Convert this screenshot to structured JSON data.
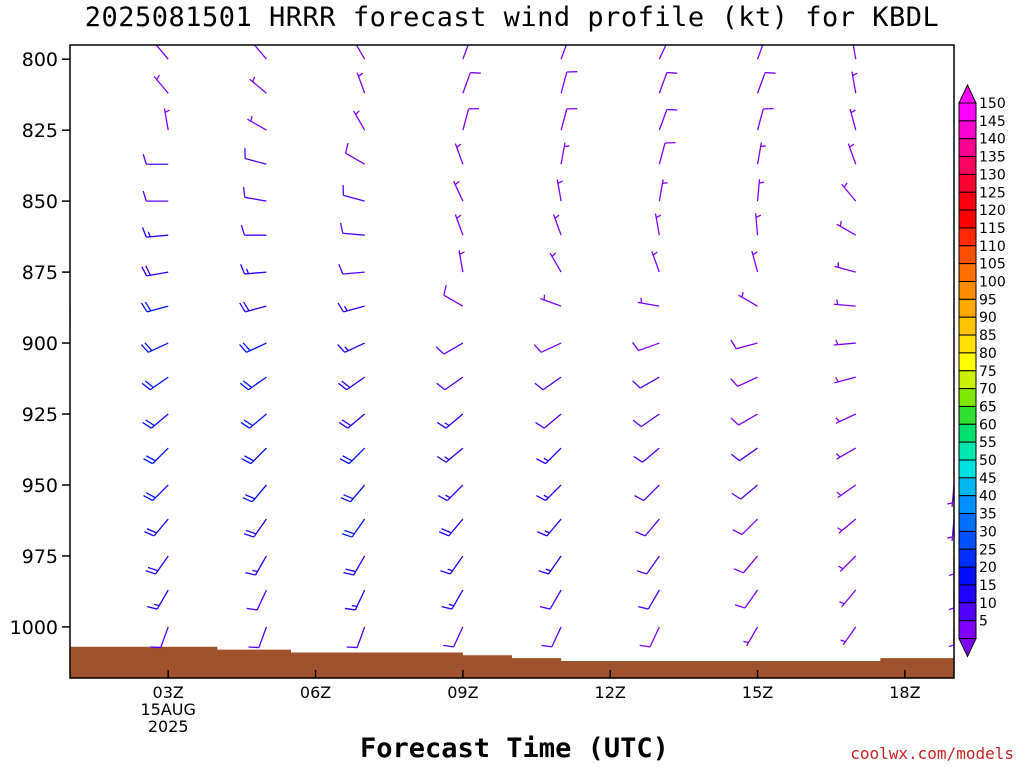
{
  "title": "2025081501 HRRR forecast wind profile (kt) for KBDL",
  "credit": "coolwx.com/models",
  "chart_data": {
    "type": "wind_barbs",
    "title": "2025081501 HRRR forecast wind profile (kt) for KBDL",
    "xlabel": "Forecast Time (UTC)",
    "ylabel": "",
    "y_axis": {
      "ticks": [
        800,
        825,
        850,
        875,
        900,
        925,
        950,
        975,
        1000
      ],
      "tick_labels": [
        "800",
        "825",
        "850",
        "875",
        "900",
        "925",
        "950",
        "975",
        "1000"
      ],
      "range": [
        795,
        1018
      ]
    },
    "x_axis": {
      "range_hours": [
        1,
        19
      ],
      "ticks": [
        {
          "hour": 3,
          "labels": [
            "03Z",
            "15AUG",
            "2025"
          ]
        },
        {
          "hour": 6,
          "labels": [
            "06Z"
          ]
        },
        {
          "hour": 9,
          "labels": [
            "09Z"
          ]
        },
        {
          "hour": 12,
          "labels": [
            "12Z"
          ]
        },
        {
          "hour": 15,
          "labels": [
            "15Z"
          ]
        },
        {
          "hour": 18,
          "labels": [
            "18Z"
          ]
        }
      ]
    },
    "colorbar": {
      "labels": [
        "150",
        "145",
        "140",
        "135",
        "130",
        "125",
        "120",
        "115",
        "110",
        "105",
        "100",
        "95",
        "90",
        "85",
        "80",
        "75",
        "70",
        "65",
        "60",
        "55",
        "50",
        "45",
        "40",
        "35",
        "30",
        "25",
        "20",
        "15",
        "10",
        "5"
      ],
      "colors": [
        "#ff00ff",
        "#ff00d0",
        "#ff0090",
        "#ff0060",
        "#ff0030",
        "#ff0010",
        "#ff0000",
        "#ff2a00",
        "#ff5000",
        "#ff7000",
        "#ff8c00",
        "#ffa800",
        "#ffc400",
        "#ffe000",
        "#ffff00",
        "#c8f000",
        "#80e800",
        "#30e030",
        "#00e070",
        "#00e8b0",
        "#00e0e0",
        "#00b8f0",
        "#0090ff",
        "#0070ff",
        "#0050ff",
        "#0030ff",
        "#0010ff",
        "#2000ff",
        "#5000ff",
        "#8000ff"
      ]
    },
    "surface_pressure": [
      {
        "hour": 1,
        "p": 1007
      },
      {
        "hour": 4,
        "p": 1008
      },
      {
        "hour": 5.5,
        "p": 1009
      },
      {
        "hour": 9,
        "p": 1010
      },
      {
        "hour": 10,
        "p": 1011
      },
      {
        "hour": 11,
        "p": 1012
      },
      {
        "hour": 17.5,
        "p": 1011
      },
      {
        "hour": 19,
        "p": 1011
      }
    ],
    "columns": [
      {
        "hour": 1,
        "levels": [
          {
            "p": 887,
            "dir": 180,
            "spd": 5
          },
          {
            "p": 900,
            "dir": 190,
            "spd": 8
          },
          {
            "p": 912,
            "dir": 200,
            "spd": 10
          },
          {
            "p": 925,
            "dir": 200,
            "spd": 12
          },
          {
            "p": 937,
            "dir": 205,
            "spd": 12
          },
          {
            "p": 950,
            "dir": 205,
            "spd": 12
          },
          {
            "p": 962,
            "dir": 200,
            "spd": 12
          },
          {
            "p": 975,
            "dir": 195,
            "spd": 10
          },
          {
            "p": 987,
            "dir": 190,
            "spd": 10
          },
          {
            "p": 1000,
            "dir": 185,
            "spd": 8
          }
        ]
      },
      {
        "hour": 3,
        "levels": [
          {
            "p": 800,
            "dir": 320,
            "spd": 5
          },
          {
            "p": 812,
            "dir": 320,
            "spd": 5
          },
          {
            "p": 825,
            "dir": 350,
            "spd": 5
          },
          {
            "p": 837,
            "dir": 270,
            "spd": 10
          },
          {
            "p": 850,
            "dir": 270,
            "spd": 12
          },
          {
            "p": 862,
            "dir": 265,
            "spd": 15
          },
          {
            "p": 875,
            "dir": 260,
            "spd": 18
          },
          {
            "p": 887,
            "dir": 255,
            "spd": 20
          },
          {
            "p": 900,
            "dir": 245,
            "spd": 20
          },
          {
            "p": 912,
            "dir": 235,
            "spd": 20
          },
          {
            "p": 925,
            "dir": 230,
            "spd": 20
          },
          {
            "p": 937,
            "dir": 225,
            "spd": 20
          },
          {
            "p": 950,
            "dir": 225,
            "spd": 20
          },
          {
            "p": 962,
            "dir": 220,
            "spd": 18
          },
          {
            "p": 975,
            "dir": 215,
            "spd": 18
          },
          {
            "p": 987,
            "dir": 210,
            "spd": 15
          },
          {
            "p": 1000,
            "dir": 200,
            "spd": 12
          }
        ]
      },
      {
        "hour": 5,
        "levels": [
          {
            "p": 800,
            "dir": 320,
            "spd": 5
          },
          {
            "p": 812,
            "dir": 310,
            "spd": 5
          },
          {
            "p": 825,
            "dir": 300,
            "spd": 5
          },
          {
            "p": 837,
            "dir": 285,
            "spd": 10
          },
          {
            "p": 850,
            "dir": 280,
            "spd": 10
          },
          {
            "p": 862,
            "dir": 270,
            "spd": 12
          },
          {
            "p": 875,
            "dir": 265,
            "spd": 15
          },
          {
            "p": 887,
            "dir": 255,
            "spd": 18
          },
          {
            "p": 900,
            "dir": 245,
            "spd": 20
          },
          {
            "p": 912,
            "dir": 235,
            "spd": 20
          },
          {
            "p": 925,
            "dir": 230,
            "spd": 20
          },
          {
            "p": 937,
            "dir": 225,
            "spd": 20
          },
          {
            "p": 950,
            "dir": 220,
            "spd": 20
          },
          {
            "p": 962,
            "dir": 215,
            "spd": 18
          },
          {
            "p": 975,
            "dir": 210,
            "spd": 15
          },
          {
            "p": 987,
            "dir": 205,
            "spd": 12
          },
          {
            "p": 1000,
            "dir": 200,
            "spd": 10
          }
        ]
      },
      {
        "hour": 7,
        "levels": [
          {
            "p": 800,
            "dir": 330,
            "spd": 5
          },
          {
            "p": 812,
            "dir": 340,
            "spd": 5
          },
          {
            "p": 825,
            "dir": 330,
            "spd": 5
          },
          {
            "p": 837,
            "dir": 300,
            "spd": 8
          },
          {
            "p": 850,
            "dir": 285,
            "spd": 10
          },
          {
            "p": 862,
            "dir": 275,
            "spd": 12
          },
          {
            "p": 875,
            "dir": 265,
            "spd": 12
          },
          {
            "p": 887,
            "dir": 255,
            "spd": 15
          },
          {
            "p": 900,
            "dir": 245,
            "spd": 15
          },
          {
            "p": 912,
            "dir": 235,
            "spd": 18
          },
          {
            "p": 925,
            "dir": 230,
            "spd": 18
          },
          {
            "p": 937,
            "dir": 225,
            "spd": 20
          },
          {
            "p": 950,
            "dir": 220,
            "spd": 20
          },
          {
            "p": 962,
            "dir": 215,
            "spd": 20
          },
          {
            "p": 975,
            "dir": 210,
            "spd": 18
          },
          {
            "p": 987,
            "dir": 205,
            "spd": 15
          },
          {
            "p": 1000,
            "dir": 200,
            "spd": 12
          }
        ]
      },
      {
        "hour": 9,
        "levels": [
          {
            "p": 800,
            "dir": 20,
            "spd": 8
          },
          {
            "p": 812,
            "dir": 20,
            "spd": 8
          },
          {
            "p": 825,
            "dir": 15,
            "spd": 8
          },
          {
            "p": 837,
            "dir": 340,
            "spd": 5
          },
          {
            "p": 850,
            "dir": 335,
            "spd": 5
          },
          {
            "p": 862,
            "dir": 340,
            "spd": 5
          },
          {
            "p": 875,
            "dir": 350,
            "spd": 5
          },
          {
            "p": 887,
            "dir": 300,
            "spd": 8
          },
          {
            "p": 900,
            "dir": 240,
            "spd": 10
          },
          {
            "p": 912,
            "dir": 235,
            "spd": 12
          },
          {
            "p": 925,
            "dir": 230,
            "spd": 15
          },
          {
            "p": 937,
            "dir": 230,
            "spd": 15
          },
          {
            "p": 950,
            "dir": 225,
            "spd": 15
          },
          {
            "p": 962,
            "dir": 220,
            "spd": 18
          },
          {
            "p": 975,
            "dir": 215,
            "spd": 15
          },
          {
            "p": 987,
            "dir": 210,
            "spd": 15
          },
          {
            "p": 1000,
            "dir": 205,
            "spd": 12
          }
        ]
      },
      {
        "hour": 11,
        "levels": [
          {
            "p": 800,
            "dir": 20,
            "spd": 8
          },
          {
            "p": 812,
            "dir": 15,
            "spd": 8
          },
          {
            "p": 825,
            "dir": 15,
            "spd": 8
          },
          {
            "p": 837,
            "dir": 10,
            "spd": 5
          },
          {
            "p": 850,
            "dir": 350,
            "spd": 5
          },
          {
            "p": 862,
            "dir": 340,
            "spd": 5
          },
          {
            "p": 875,
            "dir": 330,
            "spd": 5
          },
          {
            "p": 887,
            "dir": 290,
            "spd": 5
          },
          {
            "p": 900,
            "dir": 245,
            "spd": 8
          },
          {
            "p": 912,
            "dir": 235,
            "spd": 10
          },
          {
            "p": 925,
            "dir": 230,
            "spd": 12
          },
          {
            "p": 937,
            "dir": 225,
            "spd": 15
          },
          {
            "p": 950,
            "dir": 225,
            "spd": 15
          },
          {
            "p": 962,
            "dir": 220,
            "spd": 15
          },
          {
            "p": 975,
            "dir": 215,
            "spd": 15
          },
          {
            "p": 987,
            "dir": 210,
            "spd": 12
          },
          {
            "p": 1000,
            "dir": 205,
            "spd": 10
          }
        ]
      },
      {
        "hour": 13,
        "levels": [
          {
            "p": 800,
            "dir": 25,
            "spd": 8
          },
          {
            "p": 812,
            "dir": 20,
            "spd": 8
          },
          {
            "p": 825,
            "dir": 20,
            "spd": 8
          },
          {
            "p": 837,
            "dir": 15,
            "spd": 8
          },
          {
            "p": 850,
            "dir": 10,
            "spd": 5
          },
          {
            "p": 862,
            "dir": 350,
            "spd": 5
          },
          {
            "p": 875,
            "dir": 340,
            "spd": 5
          },
          {
            "p": 887,
            "dir": 280,
            "spd": 5
          },
          {
            "p": 900,
            "dir": 250,
            "spd": 8
          },
          {
            "p": 912,
            "dir": 240,
            "spd": 10
          },
          {
            "p": 925,
            "dir": 235,
            "spd": 10
          },
          {
            "p": 937,
            "dir": 230,
            "spd": 12
          },
          {
            "p": 950,
            "dir": 225,
            "spd": 12
          },
          {
            "p": 962,
            "dir": 220,
            "spd": 12
          },
          {
            "p": 975,
            "dir": 215,
            "spd": 10
          },
          {
            "p": 987,
            "dir": 210,
            "spd": 10
          },
          {
            "p": 1000,
            "dir": 205,
            "spd": 8
          }
        ]
      },
      {
        "hour": 15,
        "levels": [
          {
            "p": 800,
            "dir": 20,
            "spd": 8
          },
          {
            "p": 812,
            "dir": 20,
            "spd": 8
          },
          {
            "p": 825,
            "dir": 15,
            "spd": 8
          },
          {
            "p": 837,
            "dir": 10,
            "spd": 5
          },
          {
            "p": 850,
            "dir": 5,
            "spd": 5
          },
          {
            "p": 862,
            "dir": 355,
            "spd": 5
          },
          {
            "p": 875,
            "dir": 345,
            "spd": 5
          },
          {
            "p": 887,
            "dir": 300,
            "spd": 5
          },
          {
            "p": 900,
            "dir": 255,
            "spd": 8
          },
          {
            "p": 912,
            "dir": 245,
            "spd": 8
          },
          {
            "p": 925,
            "dir": 240,
            "spd": 8
          },
          {
            "p": 937,
            "dir": 235,
            "spd": 10
          },
          {
            "p": 950,
            "dir": 230,
            "spd": 10
          },
          {
            "p": 962,
            "dir": 225,
            "spd": 8
          },
          {
            "p": 975,
            "dir": 220,
            "spd": 8
          },
          {
            "p": 987,
            "dir": 215,
            "spd": 8
          },
          {
            "p": 1000,
            "dir": 210,
            "spd": 5
          }
        ]
      },
      {
        "hour": 17,
        "levels": [
          {
            "p": 800,
            "dir": 350,
            "spd": 5
          },
          {
            "p": 812,
            "dir": 350,
            "spd": 5
          },
          {
            "p": 825,
            "dir": 345,
            "spd": 5
          },
          {
            "p": 837,
            "dir": 340,
            "spd": 5
          },
          {
            "p": 850,
            "dir": 320,
            "spd": 5
          },
          {
            "p": 862,
            "dir": 300,
            "spd": 5
          },
          {
            "p": 875,
            "dir": 285,
            "spd": 5
          },
          {
            "p": 887,
            "dir": 275,
            "spd": 5
          },
          {
            "p": 900,
            "dir": 265,
            "spd": 5
          },
          {
            "p": 912,
            "dir": 255,
            "spd": 5
          },
          {
            "p": 925,
            "dir": 245,
            "spd": 5
          },
          {
            "p": 937,
            "dir": 240,
            "spd": 5
          },
          {
            "p": 950,
            "dir": 235,
            "spd": 5
          },
          {
            "p": 962,
            "dir": 230,
            "spd": 5
          },
          {
            "p": 975,
            "dir": 225,
            "spd": 5
          },
          {
            "p": 987,
            "dir": 220,
            "spd": 5
          },
          {
            "p": 1000,
            "dir": 215,
            "spd": 5
          }
        ]
      },
      {
        "hour": 19,
        "levels": [
          {
            "p": 950,
            "dir": 185,
            "spd": 5
          },
          {
            "p": 962,
            "dir": 185,
            "spd": 5
          },
          {
            "p": 975,
            "dir": 180,
            "spd": 5
          },
          {
            "p": 987,
            "dir": 180,
            "spd": 5
          },
          {
            "p": 1000,
            "dir": 180,
            "spd": 5
          }
        ]
      }
    ]
  }
}
